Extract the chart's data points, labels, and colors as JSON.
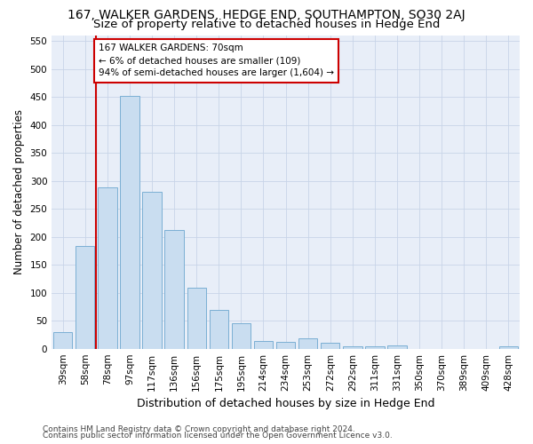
{
  "title": "167, WALKER GARDENS, HEDGE END, SOUTHAMPTON, SO30 2AJ",
  "subtitle": "Size of property relative to detached houses in Hedge End",
  "xlabel": "Distribution of detached houses by size in Hedge End",
  "ylabel": "Number of detached properties",
  "categories": [
    "39sqm",
    "58sqm",
    "78sqm",
    "97sqm",
    "117sqm",
    "136sqm",
    "156sqm",
    "175sqm",
    "195sqm",
    "214sqm",
    "234sqm",
    "253sqm",
    "272sqm",
    "292sqm",
    "311sqm",
    "331sqm",
    "350sqm",
    "370sqm",
    "389sqm",
    "409sqm",
    "428sqm"
  ],
  "values": [
    30,
    183,
    288,
    452,
    281,
    212,
    109,
    70,
    46,
    14,
    12,
    19,
    10,
    5,
    5,
    6,
    0,
    0,
    0,
    0,
    5
  ],
  "bar_color": "#c9ddf0",
  "bar_edge_color": "#7bafd4",
  "vline_color": "#cc0000",
  "annotation_text": "167 WALKER GARDENS: 70sqm\n← 6% of detached houses are smaller (109)\n94% of semi-detached houses are larger (1,604) →",
  "annotation_box_color": "#ffffff",
  "annotation_box_edge": "#cc0000",
  "ylim": [
    0,
    560
  ],
  "yticks": [
    0,
    50,
    100,
    150,
    200,
    250,
    300,
    350,
    400,
    450,
    500,
    550
  ],
  "grid_color": "#c8d4e8",
  "background_color": "#e8eef8",
  "footer_line1": "Contains HM Land Registry data © Crown copyright and database right 2024.",
  "footer_line2": "Contains public sector information licensed under the Open Government Licence v3.0.",
  "title_fontsize": 10,
  "subtitle_fontsize": 9.5,
  "xlabel_fontsize": 9,
  "ylabel_fontsize": 8.5,
  "tick_fontsize": 7.5,
  "footer_fontsize": 6.5,
  "ann_fontsize": 7.5
}
